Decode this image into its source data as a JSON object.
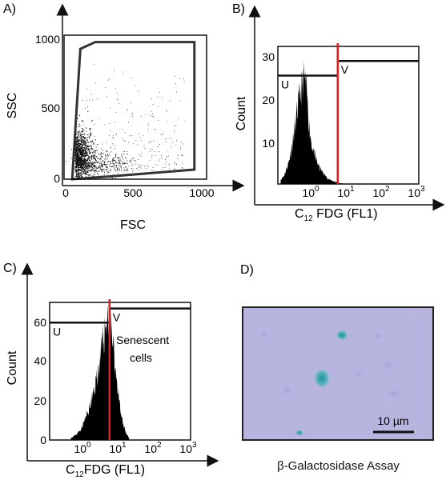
{
  "panels": {
    "a_label": "A)",
    "b_label": "B)",
    "c_label": "C)",
    "d_label": "D)"
  },
  "colors": {
    "marker_line": "#e02020",
    "hist_fill": "#000000",
    "micro_bg": "#b6b3df",
    "stain": "#3aa8b0"
  },
  "chart_data": [
    {
      "id": "A",
      "type": "scatter",
      "xlabel": "FSC",
      "ylabel": "SSC",
      "xlim": [
        0,
        1050
      ],
      "ylim": [
        0,
        1050
      ],
      "xticks": [
        "0",
        "500",
        "1000"
      ],
      "yticks": [
        "0",
        "500",
        "1000"
      ],
      "gate_polygon": [
        [
          60,
          0
        ],
        [
          120,
          950
        ],
        [
          230,
          1000
        ],
        [
          960,
          1000
        ],
        [
          960,
          70
        ],
        [
          330,
          20
        ],
        [
          60,
          0
        ]
      ],
      "dense_region": {
        "x_center": 100,
        "y_center": 180,
        "note": ""
      },
      "grid": false
    },
    {
      "id": "B",
      "type": "bar",
      "xlabel_main": "C",
      "xlabel_sub": "12",
      "xlabel_rest": " FDG (FL1)",
      "ylabel": "Count",
      "xscale": "log",
      "xlim": [
        0.1,
        1000
      ],
      "ylim": [
        0,
        33
      ],
      "xticks": [
        "10",
        "10",
        "10",
        "10"
      ],
      "xtick_exponents": [
        "0",
        "1",
        "2",
        "3"
      ],
      "yticks": [
        "10",
        "20",
        "30"
      ],
      "marker_x": 5,
      "gates": [
        {
          "label": "U",
          "x_start": 0.1,
          "x_end": 5,
          "y": 26
        },
        {
          "label": "V",
          "x_start": 5,
          "x_end": 1000,
          "y": 29.5
        }
      ],
      "histogram": {
        "x": [
          0.12,
          0.15,
          0.2,
          0.25,
          0.3,
          0.35,
          0.4,
          0.45,
          0.5,
          0.55,
          0.6,
          0.65,
          0.7,
          0.75,
          0.8,
          0.9,
          1.0,
          1.2,
          1.5,
          2,
          2.5,
          3,
          4,
          5,
          7
        ],
        "y": [
          1,
          2,
          5,
          9,
          13,
          17,
          20,
          22,
          24,
          25,
          24.5,
          22,
          19,
          16,
          13,
          10,
          8,
          6,
          4,
          2.5,
          1.5,
          1,
          0.6,
          0.3,
          0.1
        ]
      },
      "grid": false
    },
    {
      "id": "C",
      "type": "bar",
      "xlabel_main": "C",
      "xlabel_sub": "12",
      "xlabel_rest": "FDG (FL1)",
      "ylabel": "Count",
      "xscale": "log",
      "xlim": [
        0.1,
        1000
      ],
      "ylim": [
        0,
        68
      ],
      "xticks": [
        "10",
        "10",
        "10",
        "10"
      ],
      "xtick_exponents": [
        "0",
        "1",
        "2",
        "3"
      ],
      "yticks": [
        "0",
        "20",
        "40",
        "60"
      ],
      "marker_x": 5,
      "gates": [
        {
          "label": "U",
          "x_start": 0.1,
          "x_end": 5,
          "y": 58
        },
        {
          "label": "V",
          "x_start": 5,
          "x_end": 1000,
          "y": 65
        }
      ],
      "annotation_lines": [
        "Senescent",
        "cells"
      ],
      "histogram": {
        "x": [
          0.4,
          0.6,
          0.8,
          1.0,
          1.3,
          1.6,
          2.0,
          2.5,
          3.0,
          3.5,
          4.0,
          4.5,
          5.0,
          5.5,
          6.0,
          7.0,
          8.0,
          9.0,
          10,
          12,
          15,
          18
        ],
        "y": [
          1,
          3,
          6,
          10,
          15,
          20,
          28,
          36,
          44,
          52,
          58,
          61,
          60,
          56,
          50,
          40,
          30,
          22,
          15,
          8,
          3,
          1
        ]
      },
      "grid": false
    }
  ],
  "micrograph": {
    "scale_label": "10 µm",
    "caption": "β-Galactosidase Assay"
  }
}
